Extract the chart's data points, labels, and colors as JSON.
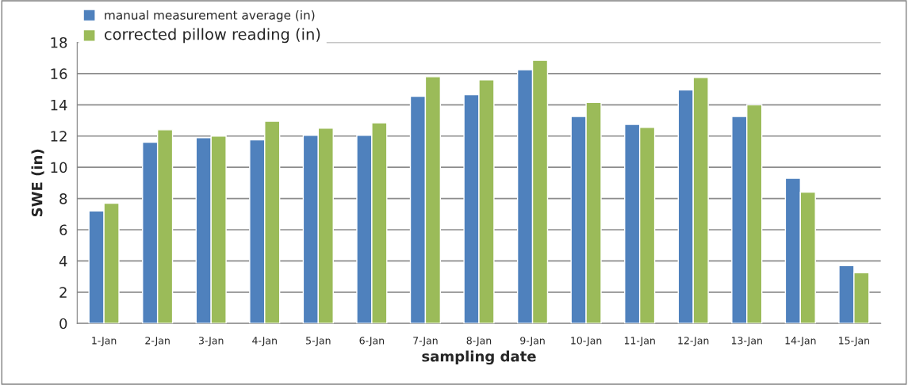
{
  "chart_data": {
    "type": "bar",
    "xlabel": "sampling date",
    "ylabel": "SWE (in)",
    "categories": [
      "1-Jan",
      "2-Jan",
      "3-Jan",
      "4-Jan",
      "5-Jan",
      "6-Jan",
      "7-Jan",
      "8-Jan",
      "9-Jan",
      "10-Jan",
      "11-Jan",
      "12-Jan",
      "13-Jan",
      "14-Jan",
      "15-Jan"
    ],
    "series": [
      {
        "name": "manual measurement average (in)",
        "color": "#4f81bd",
        "values": [
          7.2,
          11.6,
          11.9,
          11.75,
          12.05,
          12.05,
          14.55,
          14.65,
          16.25,
          13.25,
          12.75,
          14.95,
          13.25,
          9.3,
          3.7
        ]
      },
      {
        "name": "corrected pillow reading (in)",
        "color": "#9bbb59",
        "values": [
          7.7,
          12.4,
          12.0,
          12.95,
          12.5,
          12.85,
          15.8,
          15.6,
          16.85,
          14.15,
          12.55,
          15.75,
          14.0,
          8.4,
          3.25
        ]
      }
    ],
    "ylim": [
      0,
      18
    ],
    "yticks": [
      0,
      2,
      4,
      6,
      8,
      10,
      12,
      14,
      16,
      18
    ],
    "grid": "y",
    "legend": "top left"
  }
}
